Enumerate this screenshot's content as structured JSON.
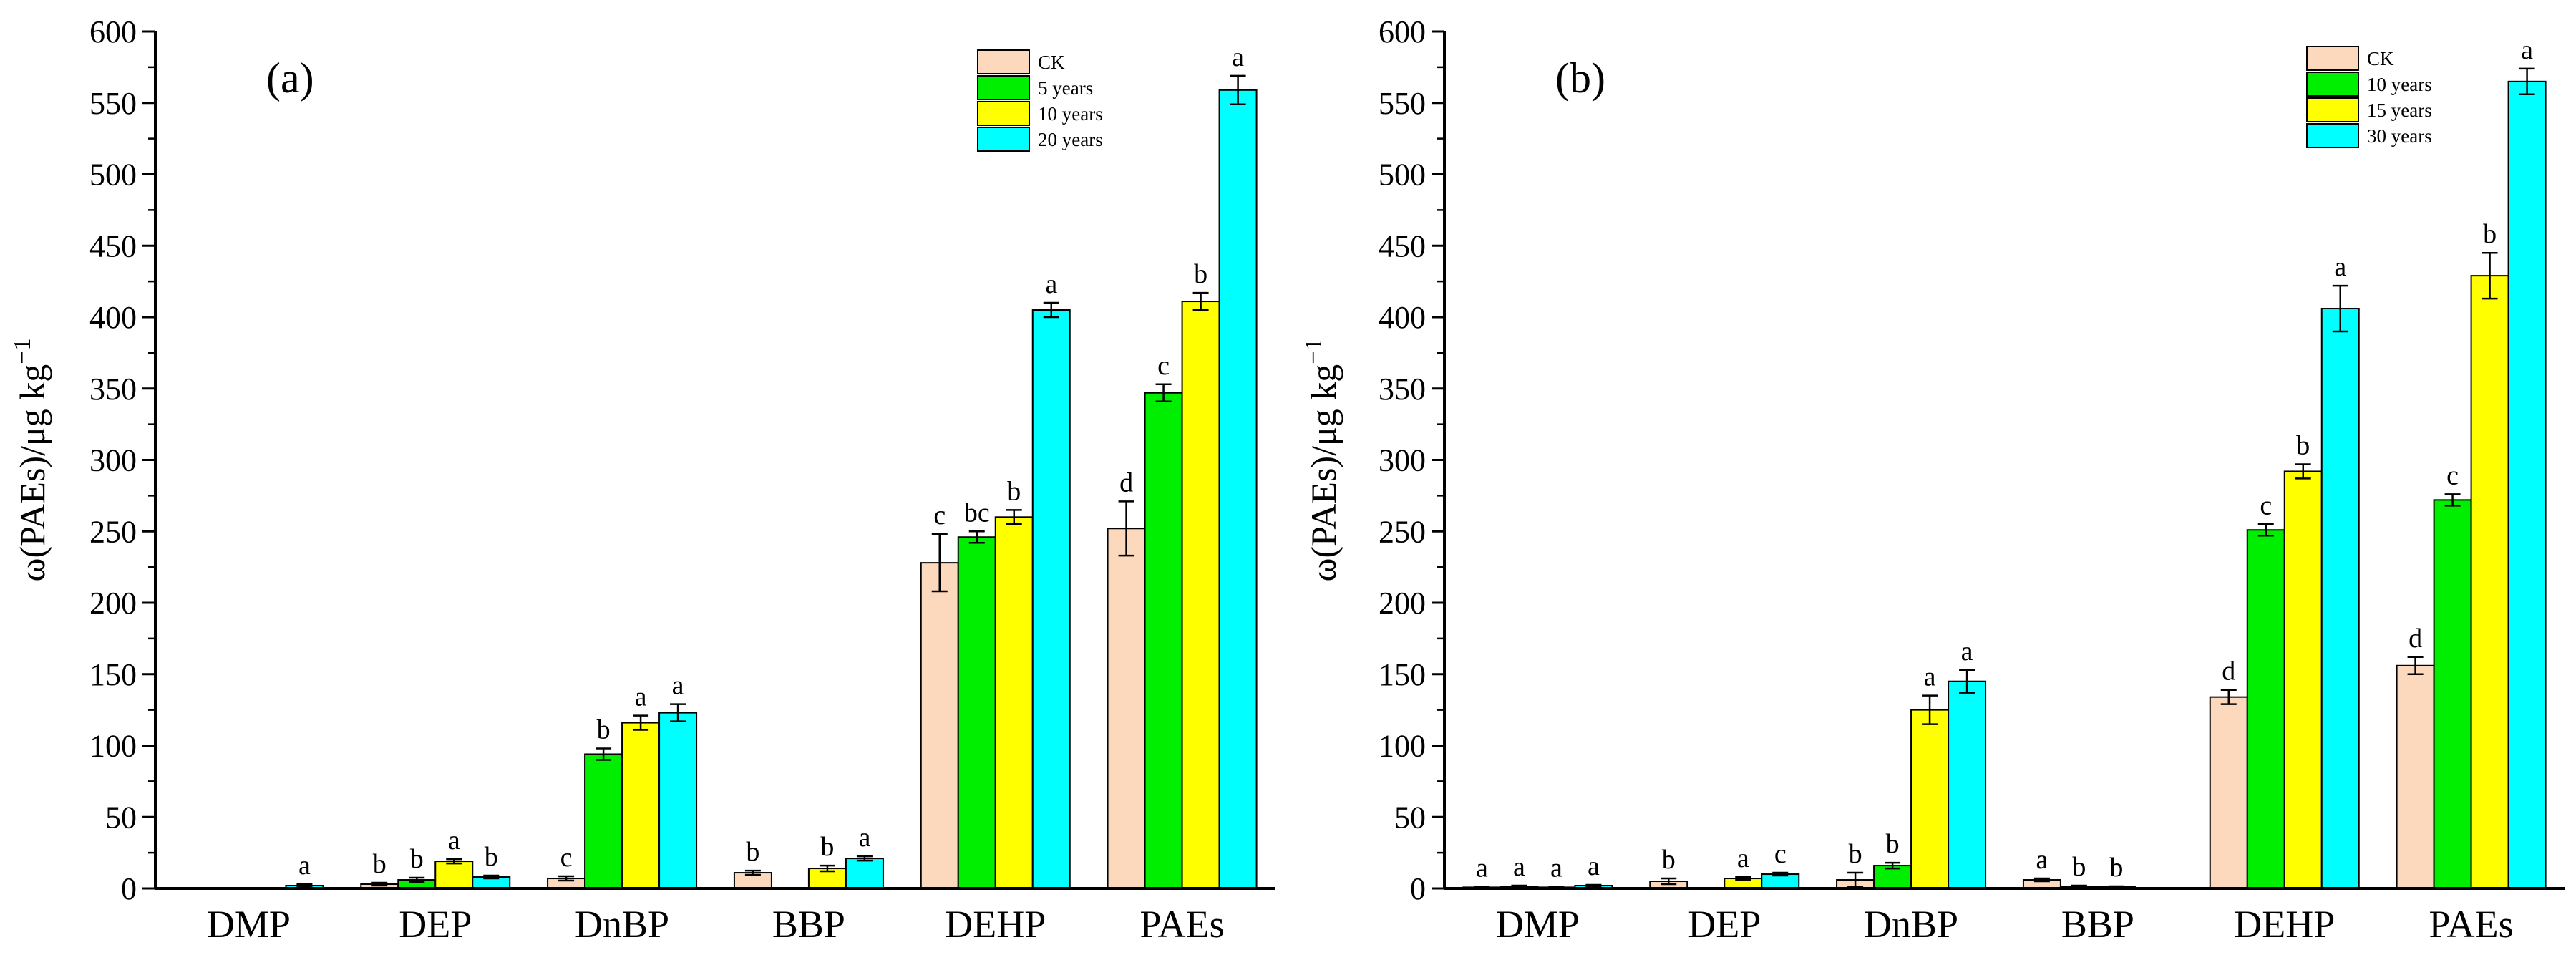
{
  "colors": {
    "CK": "#fcd9bd",
    "g1": "#00ee00",
    "g2": "#ffff00",
    "g3": "#00ffff",
    "stroke": "#000000"
  },
  "chart_data": [
    {
      "type": "bar",
      "panel_label": "(a)",
      "ylabel": "ω(PAEs)/μg kg",
      "ylabel_sup": "−1",
      "ylim": [
        0,
        600
      ],
      "yticks": [
        0,
        50,
        100,
        150,
        200,
        250,
        300,
        350,
        400,
        450,
        500,
        550,
        600
      ],
      "categories": [
        "DMP",
        "DEP",
        "DnBP",
        "BBP",
        "DEHP",
        "PAEs"
      ],
      "legend": {
        "position": "top-right",
        "entries": [
          "CK",
          "5 years",
          "10 years",
          "20 years"
        ]
      },
      "series": [
        {
          "name": "CK",
          "color_key": "CK",
          "values": [
            0,
            3,
            7,
            11,
            228,
            252
          ],
          "errors": [
            0,
            1,
            1.5,
            1.5,
            20,
            19
          ],
          "labels": [
            "",
            "b",
            "c",
            "b",
            "c",
            "d"
          ]
        },
        {
          "name": "5 years",
          "color_key": "g1",
          "values": [
            0,
            6,
            94,
            0,
            246,
            347
          ],
          "errors": [
            0,
            1.5,
            4,
            0,
            4,
            6
          ],
          "labels": [
            "",
            "b",
            "b",
            "",
            "bc",
            "c"
          ]
        },
        {
          "name": "10 years",
          "color_key": "g2",
          "values": [
            0,
            19,
            116,
            14,
            260,
            411
          ],
          "errors": [
            0,
            1.5,
            5,
            2,
            5,
            6
          ],
          "labels": [
            "",
            "a",
            "a",
            "b",
            "b",
            "b"
          ]
        },
        {
          "name": "20 years",
          "color_key": "g3",
          "values": [
            2,
            8,
            123,
            21,
            405,
            559
          ],
          "errors": [
            1,
            1,
            6,
            1.5,
            5,
            10
          ],
          "labels": [
            "a",
            "b",
            "a",
            "a",
            "a",
            "a"
          ]
        }
      ]
    },
    {
      "type": "bar",
      "panel_label": "(b)",
      "ylabel": "ω(PAEs)/μg kg",
      "ylabel_sup": "−1",
      "ylim": [
        0,
        600
      ],
      "yticks": [
        0,
        50,
        100,
        150,
        200,
        250,
        300,
        350,
        400,
        450,
        500,
        550,
        600
      ],
      "categories": [
        "DMP",
        "DEP",
        "DnBP",
        "BBP",
        "DEHP",
        "PAEs"
      ],
      "legend": {
        "position": "top-right",
        "entries": [
          "CK",
          "10 years",
          "15 years",
          "30 years"
        ]
      },
      "series": [
        {
          "name": "CK",
          "color_key": "CK",
          "values": [
            0.8,
            5,
            6,
            6,
            134,
            156
          ],
          "errors": [
            0.5,
            2,
            5,
            1,
            5,
            6
          ],
          "labels": [
            "a",
            "b",
            "b",
            "a",
            "d",
            "d"
          ]
        },
        {
          "name": "10 years",
          "color_key": "g1",
          "values": [
            1.5,
            0,
            16,
            1.5,
            251,
            272
          ],
          "errors": [
            0.5,
            0,
            2,
            0.5,
            4,
            4
          ],
          "labels": [
            "a",
            "",
            "b",
            "b",
            "c",
            "c"
          ]
        },
        {
          "name": "15 years",
          "color_key": "g2",
          "values": [
            0.8,
            7,
            125,
            1,
            292,
            429
          ],
          "errors": [
            0.5,
            1,
            10,
            0.5,
            5,
            16
          ],
          "labels": [
            "a",
            "a",
            "a",
            "b",
            "b",
            "b"
          ]
        },
        {
          "name": "30 years",
          "color_key": "g3",
          "values": [
            2,
            10,
            145,
            0,
            406,
            565
          ],
          "errors": [
            0.5,
            1,
            8,
            0,
            16,
            9
          ],
          "labels": [
            "a",
            "c",
            "a",
            "",
            "a",
            "a"
          ]
        }
      ]
    }
  ]
}
